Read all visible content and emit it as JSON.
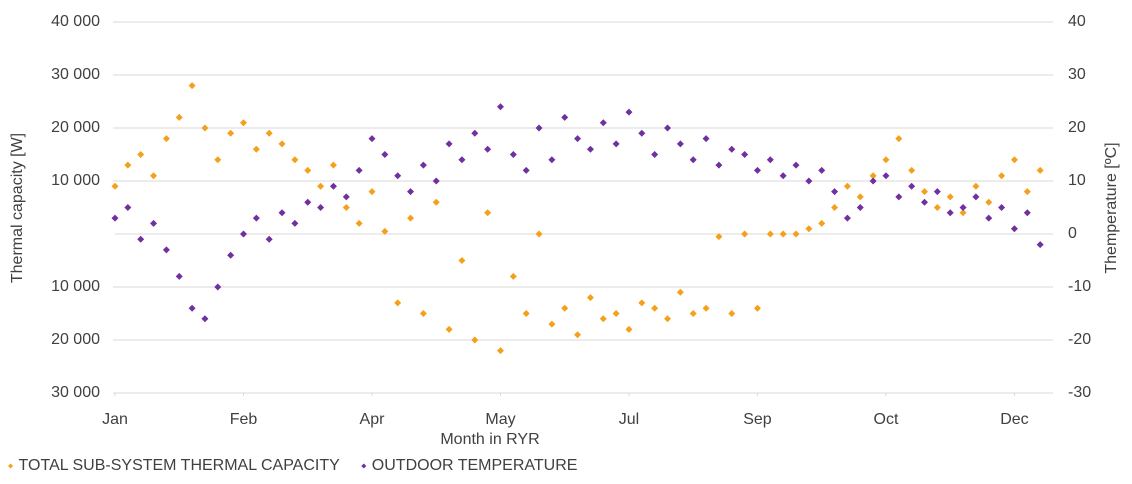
{
  "chart_data": {
    "type": "scatter",
    "xlabel": "Month in RYR",
    "ylabel": "Thermal capacity [W]",
    "y2label": "Themperature [ºC]",
    "x": [
      0,
      120,
      240,
      360,
      480,
      600,
      720,
      840,
      960,
      1080,
      1200,
      1320,
      1440,
      1560,
      1680,
      1800,
      1920,
      2040,
      2160,
      2280,
      2400,
      2520,
      2640,
      2760,
      2880,
      3000,
      3120,
      3240,
      3360,
      3480,
      3600,
      3720,
      3840,
      3960,
      4080,
      4200,
      4320,
      4440,
      4560,
      4680,
      4800,
      4920,
      5040,
      5160,
      5280,
      5400,
      5520,
      5640,
      5760,
      5880,
      6000,
      6120,
      6240,
      6360,
      6480,
      6600,
      6720,
      6840,
      6960,
      7080,
      7200,
      7320,
      7440,
      7560,
      7680,
      7800,
      7920,
      8040,
      8160,
      8280,
      8400,
      8520,
      8640
    ],
    "xlim": [
      0,
      8760
    ],
    "xticks": [
      {
        "value": 0,
        "label": "Jan"
      },
      {
        "value": 1200,
        "label": "Feb"
      },
      {
        "value": 2400,
        "label": "Apr"
      },
      {
        "value": 3600,
        "label": "May"
      },
      {
        "value": 4800,
        "label": "Jul"
      },
      {
        "value": 6000,
        "label": "Sep"
      },
      {
        "value": 7200,
        "label": "Oct"
      },
      {
        "value": 8400,
        "label": "Dec"
      }
    ],
    "ylim": [
      -30000,
      40000
    ],
    "yticks": [
      {
        "value": 40000,
        "label": "40 000"
      },
      {
        "value": 30000,
        "label": "30 000"
      },
      {
        "value": 20000,
        "label": "20 000"
      },
      {
        "value": 10000,
        "label": "10 000"
      },
      {
        "value": -10000,
        "label": "10 000"
      },
      {
        "value": -20000,
        "label": "20 000"
      },
      {
        "value": -30000,
        "label": "30 000"
      }
    ],
    "y2lim": [
      -30,
      40
    ],
    "y2ticks": [
      40,
      30,
      20,
      10,
      0,
      -10,
      -20,
      -30
    ],
    "grid": true,
    "legend": "bottom",
    "series": [
      {
        "name": "TOTAL SUB-SYSTEM THERMAL CAPACITY",
        "color": "#f5a01a",
        "values": [
          9000,
          13000,
          15000,
          11000,
          18000,
          22000,
          28000,
          20000,
          14000,
          19000,
          21000,
          16000,
          19000,
          17000,
          14000,
          12000,
          9000,
          13000,
          5000,
          2000,
          8000,
          500,
          -13000,
          3000,
          -15000,
          6000,
          -18000,
          -5000,
          -20000,
          4000,
          -22000,
          -8000,
          -15000,
          0,
          -17000,
          -14000,
          -19000,
          -12000,
          -16000,
          -15000,
          -18000,
          -13000,
          -14000,
          -16000,
          -11000,
          -15000,
          -14000,
          -500,
          -15000,
          0,
          -14000,
          0,
          0,
          0,
          1000,
          2000,
          5000,
          9000,
          7000,
          11000,
          14000,
          18000,
          12000,
          8000,
          5000,
          7000,
          4000,
          9000,
          6000,
          11000,
          14000,
          8000,
          12000
        ]
      },
      {
        "name": "OUTDOOR TEMPERATURE",
        "color": "#7030a0",
        "axis": "y2",
        "values": [
          3,
          5,
          -1,
          2,
          -3,
          -8,
          -14,
          -16,
          -10,
          -4,
          0,
          3,
          -1,
          4,
          2,
          6,
          5,
          9,
          7,
          12,
          18,
          15,
          11,
          8,
          13,
          10,
          17,
          14,
          19,
          16,
          24,
          15,
          12,
          20,
          14,
          22,
          18,
          16,
          21,
          17,
          23,
          19,
          15,
          20,
          17,
          14,
          18,
          13,
          16,
          15,
          12,
          14,
          11,
          13,
          10,
          12,
          8,
          3,
          5,
          10,
          11,
          7,
          9,
          6,
          8,
          4,
          5,
          7,
          3,
          5,
          1,
          4,
          -2
        ]
      }
    ]
  }
}
